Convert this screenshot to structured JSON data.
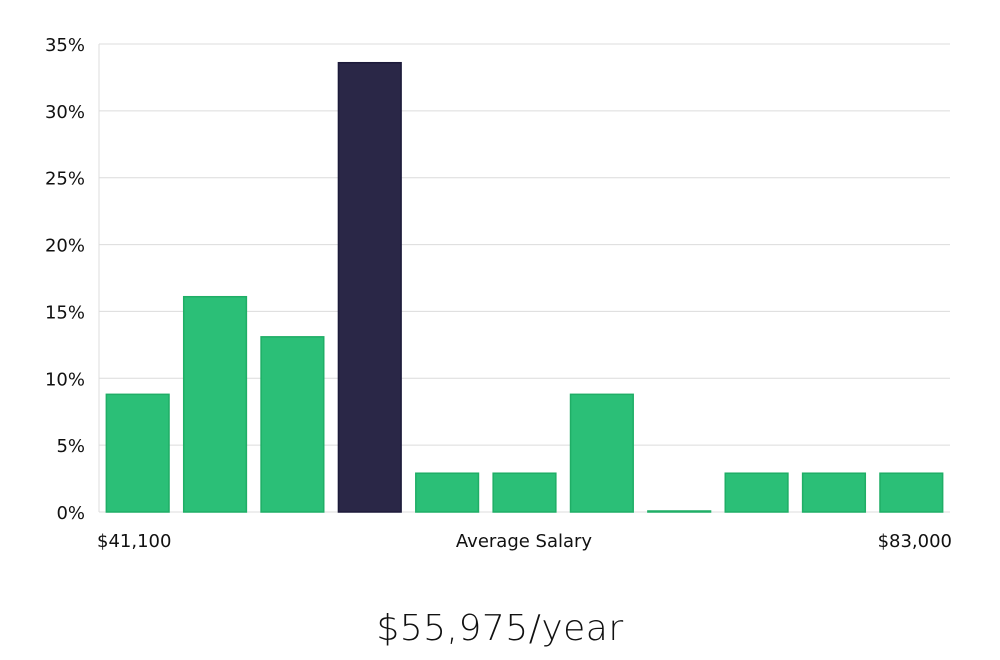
{
  "chart_data": {
    "type": "bar",
    "categories": [
      "",
      "",
      "",
      "",
      "",
      "",
      "",
      "",
      "",
      "",
      ""
    ],
    "values": [
      8.8,
      16.1,
      13.1,
      33.6,
      2.9,
      2.9,
      8.8,
      0.0,
      2.9,
      2.9,
      2.9
    ],
    "highlight_index": 3,
    "ylim": [
      0,
      35
    ],
    "yticks": [
      0,
      5,
      10,
      15,
      20,
      25,
      30,
      35
    ],
    "ytick_labels": [
      "0%",
      "5%",
      "10%",
      "15%",
      "20%",
      "25%",
      "30%",
      "35%"
    ],
    "grid": true,
    "x_start_label": "$41,100",
    "xlabel": "Average Salary",
    "x_end_label": "$83,000",
    "colors": {
      "bar": "#2bbf77",
      "bar_stroke": "#1fae66",
      "highlight": "#2a2747",
      "highlight_stroke": "#1c1a3a",
      "grid": "#dcdcdc",
      "text": "#111111"
    }
  },
  "summary": {
    "salary": "$55,975/year"
  }
}
